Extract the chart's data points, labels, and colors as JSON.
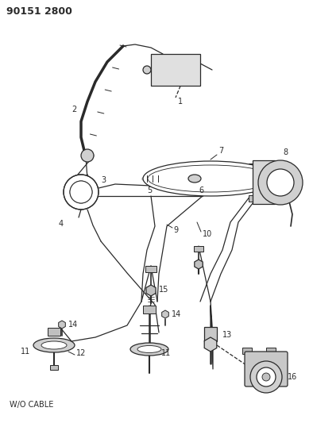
{
  "title": "90151 2800",
  "bg_color": "#ffffff",
  "line_color": "#2a2a2a",
  "lw": 0.9,
  "wo_cable": "W/O CABLE"
}
